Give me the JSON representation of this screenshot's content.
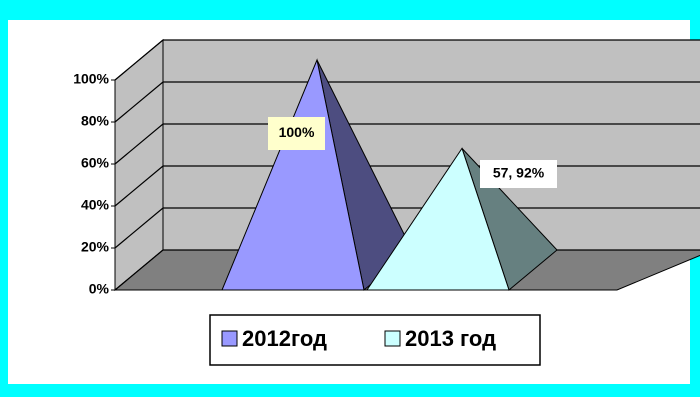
{
  "chart_data": {
    "type": "pyramid",
    "series": [
      {
        "name": "2012год",
        "color": "#9999ff",
        "values": [
          100
        ],
        "value_labels": [
          "100%"
        ]
      },
      {
        "name": "2013 год",
        "color": "#ccffff",
        "values": [
          57.92
        ],
        "value_labels": [
          "57, 92%"
        ]
      }
    ],
    "ylim": [
      0,
      100
    ],
    "yticks": [
      {
        "value": 0,
        "label": "0%"
      },
      {
        "value": 20,
        "label": "20%"
      },
      {
        "value": 40,
        "label": "40%"
      },
      {
        "value": 60,
        "label": "60%"
      },
      {
        "value": 80,
        "label": "80%"
      },
      {
        "value": 100,
        "label": "100%"
      }
    ],
    "grid": true,
    "legend": "bottom"
  }
}
